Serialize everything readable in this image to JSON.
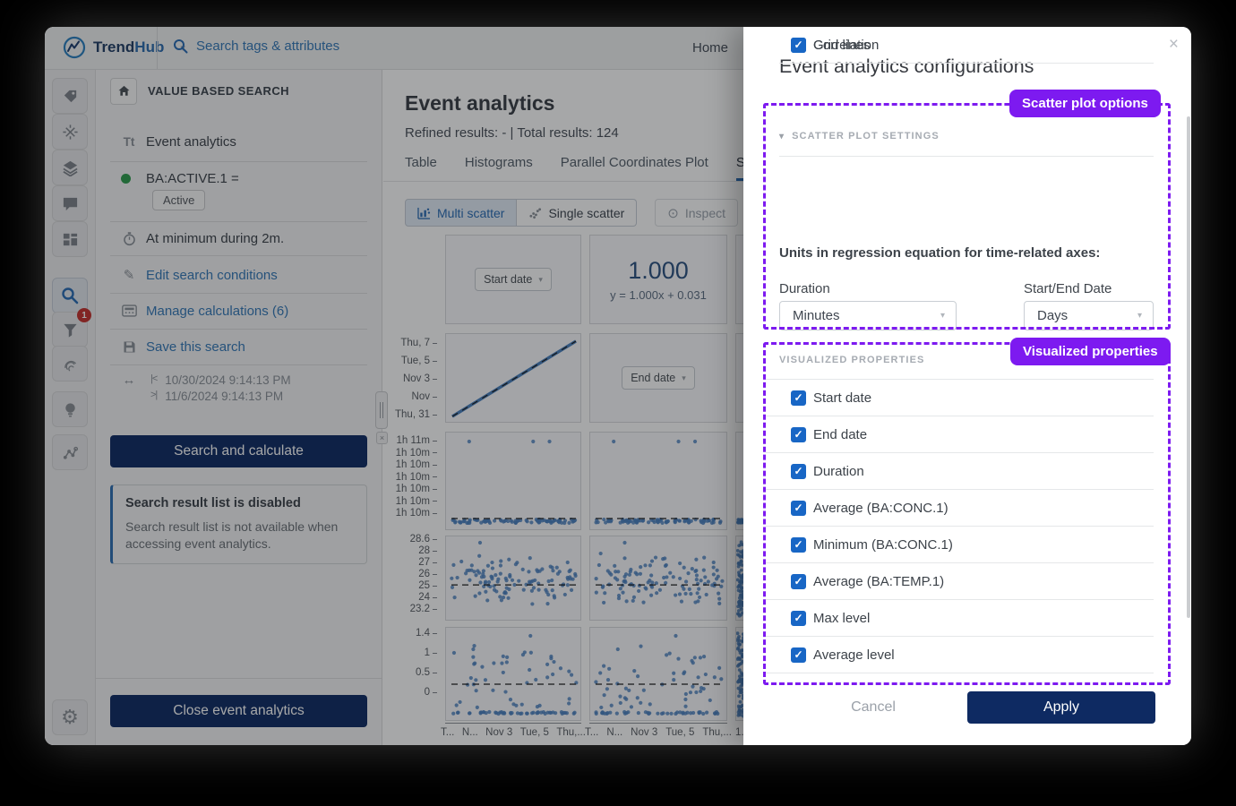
{
  "topbar": {
    "brand_part1": "Trend",
    "brand_part2": "Hub",
    "search_placeholder": "Search tags & attributes",
    "home_label": "Home"
  },
  "sidebar": {
    "icons": [
      "tags",
      "formula-tools",
      "layers",
      "comments",
      "layout",
      "search",
      "filter",
      "fingerprint",
      "idea",
      "connections",
      "settings"
    ],
    "filter_badge": "1"
  },
  "search_panel": {
    "header": "VALUE BASED SEARCH",
    "tool_name": "Event analytics",
    "signal_line": "BA:ACTIVE.1 =",
    "signal_value": "Active",
    "condition_line": "At minimum during 2m.",
    "edit_link": "Edit search conditions",
    "manage_link": "Manage calculations (6)",
    "save_link": "Save this search",
    "date_start": "10/30/2024 9:14:13 PM",
    "date_end": "11/6/2024 9:14:13 PM",
    "search_button": "Search and calculate",
    "notice_title": "Search result list is disabled",
    "notice_body": "Search result list is not available when accessing event analytics.",
    "close_button": "Close event analytics"
  },
  "main": {
    "title": "Event analytics",
    "results_line": "Refined results: - | Total results: 124",
    "tabs": [
      {
        "label": "Table",
        "active": false
      },
      {
        "label": "Histograms",
        "active": false
      },
      {
        "label": "Parallel Coordinates Plot",
        "active": false
      },
      {
        "label": "S",
        "active": true
      }
    ],
    "toolbar": {
      "multi_scatter": "Multi scatter",
      "single_scatter": "Single scatter",
      "inspect": "Inspect"
    },
    "matrix": {
      "start_date_dropdown": "Start date",
      "end_date_dropdown": "End date",
      "correlation_value": "1.000",
      "correlation_equation": "y = 1.000x + 0.031",
      "yticks_start": [
        "Thu, 7",
        "Tue, 5",
        "Nov 3",
        "Nov",
        "Thu, 31"
      ],
      "yticks_duration": [
        "1h 11m",
        "1h 10m",
        "1h 10m",
        "1h 10m",
        "1h 10m",
        "1h 10m",
        "1h 10m"
      ],
      "yticks_conc": [
        "28.6",
        "28",
        "27",
        "26",
        "25",
        "24",
        "23.2"
      ],
      "yticks_level": [
        "1.4",
        "1",
        "0.5",
        "0"
      ],
      "xticks": [
        "T...",
        "N...",
        "Nov 3",
        "Tue, 5",
        "Thu,..."
      ],
      "xtick_col3": "1..."
    }
  },
  "modal": {
    "title": "Event analytics configurations",
    "annotation_scatter": "Scatter plot options",
    "annotation_visualized": "Visualized properties",
    "settings_header": "SCATTER PLOT SETTINGS",
    "options": [
      {
        "label": "Grid lines",
        "checked": false
      },
      {
        "label": "Correlation",
        "checked": true
      }
    ],
    "units_label": "Units in regression equation for time-related axes:",
    "duration_label": "Duration",
    "duration_value": "Minutes",
    "startend_label": "Start/End Date",
    "startend_value": "Days",
    "properties_header": "VISUALIZED PROPERTIES",
    "properties": [
      {
        "label": "Start date",
        "checked": true
      },
      {
        "label": "End date",
        "checked": true
      },
      {
        "label": "Duration",
        "checked": true
      },
      {
        "label": "Average (BA:CONC.1)",
        "checked": true
      },
      {
        "label": "Minimum (BA:CONC.1)",
        "checked": true
      },
      {
        "label": "Average (BA:TEMP.1)",
        "checked": true
      },
      {
        "label": "Max level",
        "checked": true
      },
      {
        "label": "Average level",
        "checked": true
      }
    ],
    "cancel_label": "Cancel",
    "apply_label": "Apply"
  },
  "icons": {
    "close": "×",
    "caret_down": "▾",
    "gear": "⚙",
    "pencil": "✎",
    "double_arrow": "↔",
    "range_start": "|<",
    "range_end": ">|",
    "inspect": "⊙",
    "check": "✓",
    "text_tool": "Tt",
    "resize_x": "×"
  },
  "colors": {
    "navy_button": "#0f2c64",
    "link_blue": "#3579b8",
    "annotation_purple": "#7d1af0",
    "checkbox_blue": "#1866c5",
    "scatter_blue": "#4a80bf",
    "active_tab_underline": "#2a6cb5",
    "badge_red": "#c4312e",
    "signal_green": "#2f9e4e"
  }
}
